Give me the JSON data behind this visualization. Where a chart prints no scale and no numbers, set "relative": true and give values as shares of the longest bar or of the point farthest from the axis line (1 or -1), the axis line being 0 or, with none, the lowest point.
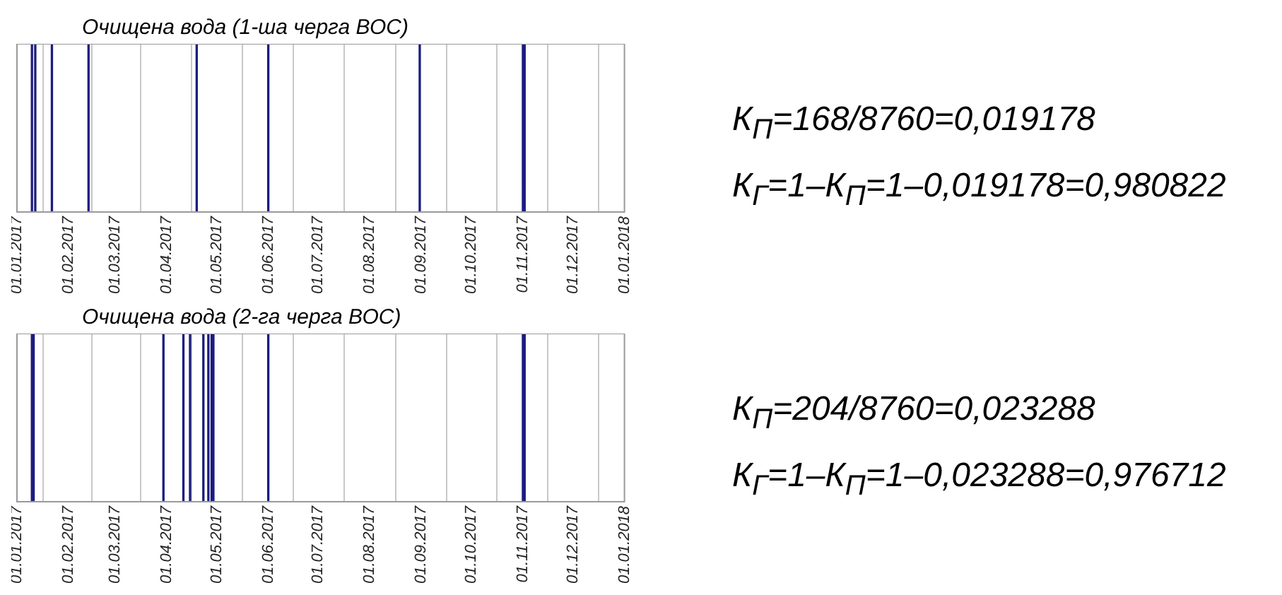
{
  "chart_data": [
    {
      "type": "bar",
      "title": "Очищена вода (1-ша черга ВОС)",
      "relative": true,
      "grid": "x",
      "color": "#1c1c80",
      "x": [
        "2017-01-10",
        "2017-01-12",
        "2017-01-22",
        "2017-02-13",
        "2017-04-19",
        "2017-06-01",
        "2017-08-31",
        "2017-11-01",
        "2017-11-02"
      ],
      "values": [
        1,
        1,
        1,
        1,
        1,
        1,
        1,
        1,
        1
      ],
      "xlim": [
        "2017-01-01",
        "2018-01-01"
      ],
      "xticks": [
        {
          "value": "2017-01-01",
          "label": "01.01.2017"
        },
        {
          "value": "2017-02-01",
          "label": "01.02.2017"
        },
        {
          "value": "2017-03-01",
          "label": "01.03.2017"
        },
        {
          "value": "2017-04-01",
          "label": "01.04.2017"
        },
        {
          "value": "2017-05-01",
          "label": "01.05.2017"
        },
        {
          "value": "2017-06-01",
          "label": "01.06.2017"
        },
        {
          "value": "2017-07-01",
          "label": "01.07.2017"
        },
        {
          "value": "2017-08-01",
          "label": "01.08.2017"
        },
        {
          "value": "2017-09-01",
          "label": "01.09.2017"
        },
        {
          "value": "2017-10-01",
          "label": "01.10.2017"
        },
        {
          "value": "2017-11-01",
          "label": "01.11.2017"
        },
        {
          "value": "2017-12-01",
          "label": "01.12.2017"
        },
        {
          "value": "2018-01-01",
          "label": "01.01.2018"
        }
      ],
      "annotations": [
        "К$_{П}$=168/8760=0,019178",
        "К$_{Г}$=1–К$_{П}$=1–0,019178=0,980822"
      ]
    },
    {
      "type": "bar",
      "title": "Очищена вода (2-га черга ВОС)",
      "relative": true,
      "grid": "x",
      "color": "#1c1c80",
      "x": [
        "2017-01-10",
        "2017-01-11",
        "2017-03-30",
        "2017-04-11",
        "2017-04-15",
        "2017-04-23",
        "2017-04-26",
        "2017-04-28",
        "2017-04-29",
        "2017-06-01",
        "2017-11-01",
        "2017-11-02"
      ],
      "values": [
        1,
        1,
        1,
        1,
        1,
        1,
        1,
        1,
        1,
        1,
        1,
        1
      ],
      "xlim": [
        "2017-01-01",
        "2018-01-01"
      ],
      "xticks": [
        {
          "value": "2017-01-01",
          "label": "01.01.2017"
        },
        {
          "value": "2017-02-01",
          "label": "01.02.2017"
        },
        {
          "value": "2017-03-01",
          "label": "01.03.2017"
        },
        {
          "value": "2017-04-01",
          "label": "01.04.2017"
        },
        {
          "value": "2017-05-01",
          "label": "01.05.2017"
        },
        {
          "value": "2017-06-01",
          "label": "01.06.2017"
        },
        {
          "value": "2017-07-01",
          "label": "01.07.2017"
        },
        {
          "value": "2017-08-01",
          "label": "01.08.2017"
        },
        {
          "value": "2017-09-01",
          "label": "01.09.2017"
        },
        {
          "value": "2017-10-01",
          "label": "01.10.2017"
        },
        {
          "value": "2017-11-01",
          "label": "01.11.2017"
        },
        {
          "value": "2017-12-01",
          "label": "01.12.2017"
        },
        {
          "value": "2018-01-01",
          "label": "01.01.2018"
        }
      ],
      "annotations": [
        "К$_{П}$=204/8760=0,023288",
        "К$_{Г}$=1–К$_{П}$=1–0,023288=0,976712"
      ]
    }
  ]
}
